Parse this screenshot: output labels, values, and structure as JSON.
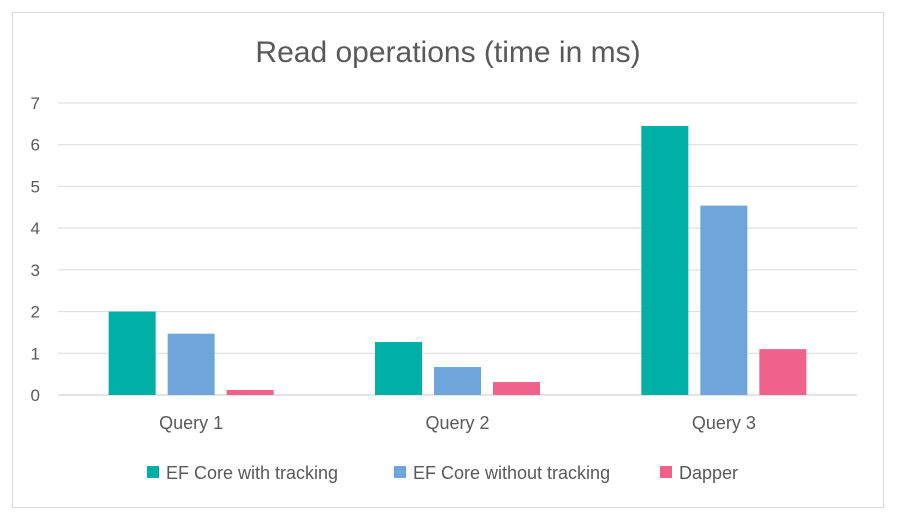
{
  "chart_data": {
    "type": "bar",
    "title": "Read operations (time in ms)",
    "xlabel": "",
    "ylabel": "",
    "categories": [
      "Query 1",
      "Query 2",
      "Query 3"
    ],
    "yticks": [
      "0",
      "1",
      "2",
      "3",
      "4",
      "5",
      "6",
      "7"
    ],
    "ylim": [
      0,
      7
    ],
    "grid": true,
    "legend_position": "bottom",
    "series": [
      {
        "name": "EF Core with tracking",
        "color": "#00b0a6",
        "values": [
          2.0,
          1.27,
          6.45
        ]
      },
      {
        "name": "EF Core without tracking",
        "color": "#6ea6dc",
        "values": [
          1.47,
          0.67,
          4.54
        ]
      },
      {
        "name": "Dapper",
        "color": "#f0628b",
        "values": [
          0.12,
          0.31,
          1.1
        ]
      }
    ]
  }
}
